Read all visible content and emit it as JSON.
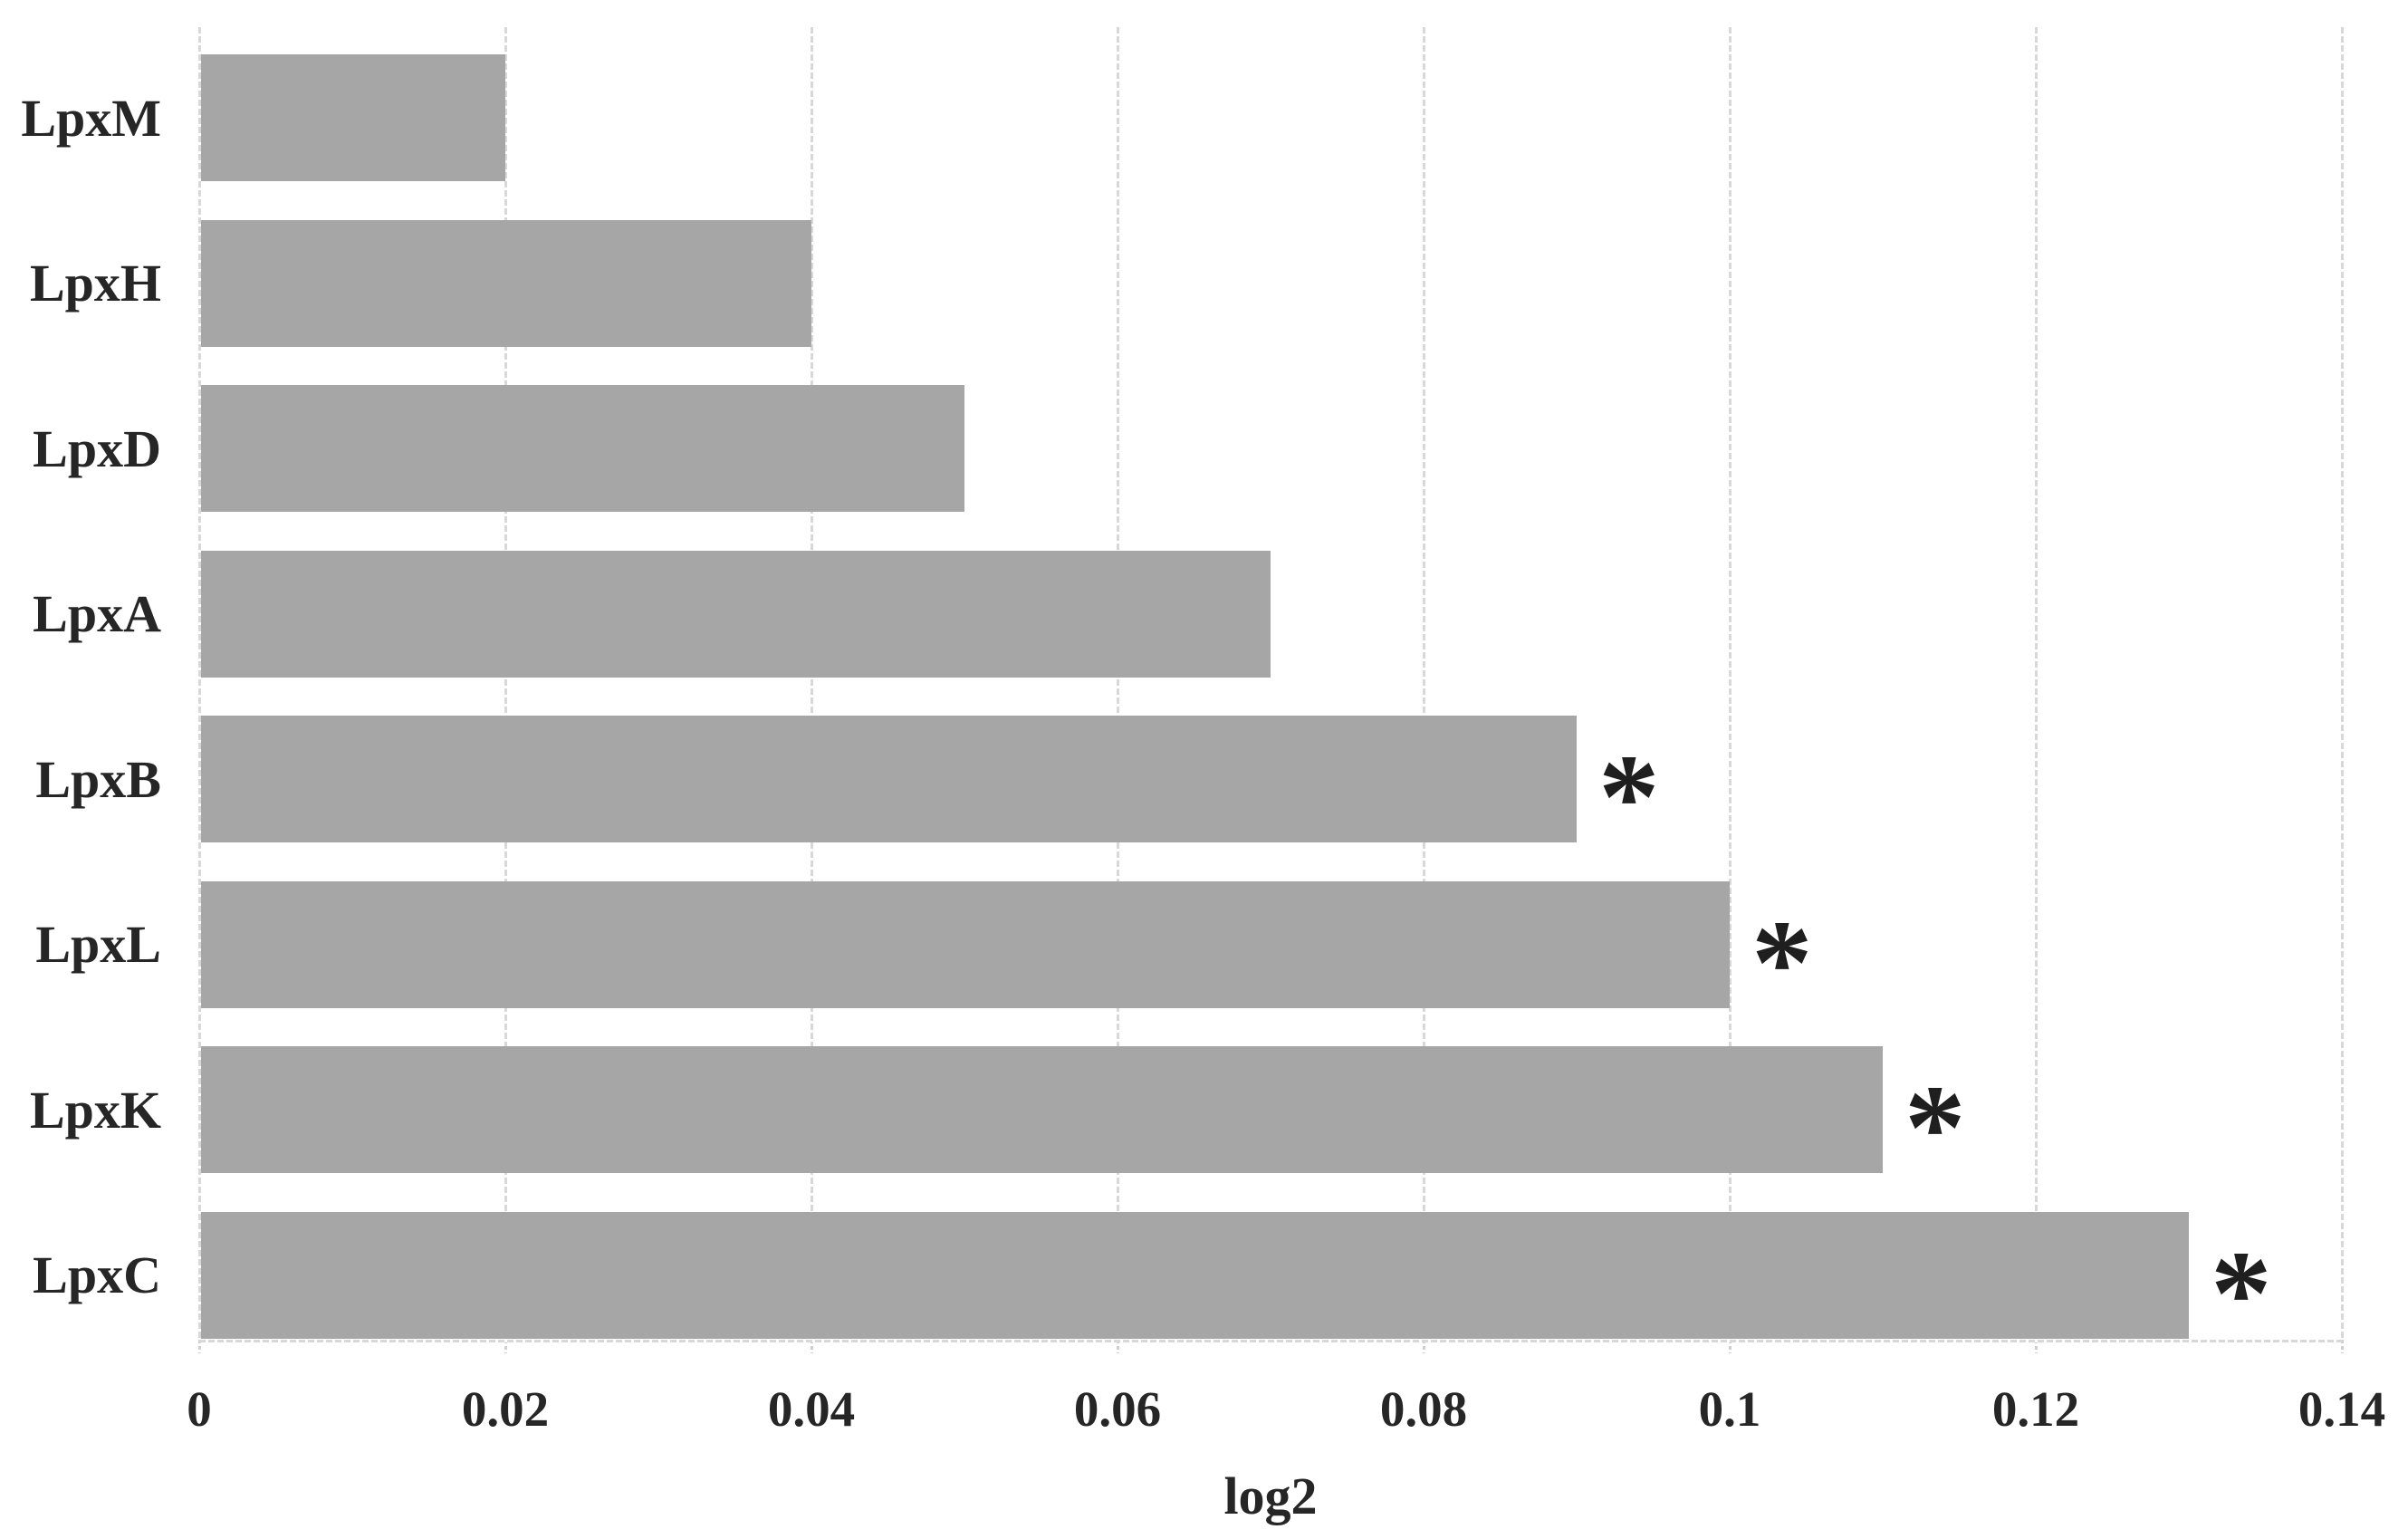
{
  "figure": {
    "background": "#ffffff"
  },
  "chart_data": {
    "type": "bar",
    "orientation": "horizontal",
    "title": "",
    "xlabel": "log2",
    "ylabel": "",
    "categories": [
      "LpxM",
      "LpxH",
      "LpxD",
      "LpxA",
      "LpxB",
      "LpxL",
      "LpxK",
      "LpxC"
    ],
    "values": [
      0.02,
      0.04,
      0.05,
      0.07,
      0.09,
      0.1,
      0.11,
      0.13
    ],
    "significance_markers": [
      "",
      "",
      "",
      "",
      "*",
      "*",
      "*",
      "*"
    ],
    "xlim": [
      0,
      0.14
    ],
    "x_tick_values": [
      0,
      0.02,
      0.04,
      0.06,
      0.08,
      0.1,
      0.12,
      0.14
    ],
    "x_tick_labels": [
      "0",
      "0.02",
      "0.04",
      "0.06",
      "0.08",
      "0.1",
      "0.12",
      "0.14"
    ],
    "grid": "vertical",
    "legend": false,
    "colors": {
      "bar": "#a6a6a6",
      "gridline": "#d8d8d8",
      "text": "#262626",
      "marker": "#1f1f1f"
    }
  }
}
